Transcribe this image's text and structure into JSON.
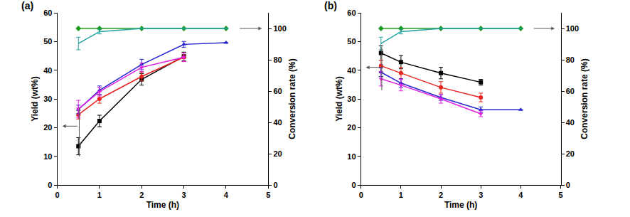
{
  "chart_data": [
    {
      "type": "line",
      "title": "(a)",
      "x_label": "Time (h)",
      "y_label": "Yield (wt%)",
      "y2_label": "Conversion rate (%)",
      "x": [
        0.5,
        1,
        2,
        3,
        4
      ],
      "xlim": [
        0,
        5
      ],
      "xticks": [
        0,
        1,
        2,
        3,
        4,
        5
      ],
      "ylim": [
        0,
        60
      ],
      "yticks": [
        0,
        10,
        20,
        30,
        40,
        50,
        60
      ],
      "y2lim": [
        0,
        110
      ],
      "y2ticks": [
        0,
        20,
        40,
        60,
        80,
        100
      ],
      "grid": false,
      "series": [
        {
          "color": "#000000",
          "marker": "square",
          "values": [
            13.5,
            22.3,
            36.8,
            44.8,
            null
          ],
          "error": [
            3,
            2,
            2,
            1.5,
            null
          ]
        },
        {
          "color": "#e8231f",
          "marker": "circle",
          "values": [
            24.5,
            30,
            37.8,
            44.5,
            null
          ],
          "error": [
            1.5,
            1.5,
            1.5,
            1.5,
            null
          ]
        },
        {
          "color": "#2424d0",
          "marker": "triangle-up",
          "values": [
            26.3,
            33,
            42,
            49,
            49.6
          ],
          "error": [
            1.5,
            1.5,
            1.8,
            1,
            null
          ]
        },
        {
          "color": "#e020e0",
          "marker": "triangle-down",
          "values": [
            26.5,
            32.5,
            41,
            44.5,
            null
          ],
          "error": [
            3,
            1.5,
            1.5,
            1.5,
            null
          ]
        },
        {
          "color": "#1e9a1e",
          "marker": "diamond",
          "axis": "y2",
          "values": [
            100,
            100,
            100,
            100,
            100
          ],
          "error": [
            null,
            null,
            null,
            null,
            null
          ]
        },
        {
          "color": "#20a0a0",
          "marker": "none",
          "axis": "y2",
          "values": [
            90.4,
            98,
            100,
            100,
            100
          ],
          "error": [
            4,
            1.5,
            null,
            null,
            null
          ]
        }
      ]
    },
    {
      "type": "line",
      "title": "(b)",
      "x_label": "Time (h)",
      "y_label": "Yield (wt%)",
      "y2_label": "Conversion rate (%)",
      "x": [
        0.5,
        1,
        2,
        3,
        4
      ],
      "xlim": [
        0,
        5
      ],
      "xticks": [
        0,
        1,
        2,
        3,
        4,
        5
      ],
      "ylim": [
        0,
        60
      ],
      "yticks": [
        0,
        10,
        20,
        30,
        40,
        50,
        60
      ],
      "y2lim": [
        0,
        110
      ],
      "y2ticks": [
        0,
        20,
        40,
        60,
        80,
        100
      ],
      "grid": false,
      "series": [
        {
          "color": "#000000",
          "marker": "square",
          "values": [
            46,
            42.8,
            39,
            35.8,
            null
          ],
          "error": [
            2.5,
            2.3,
            2,
            1,
            null
          ]
        },
        {
          "color": "#e8231f",
          "marker": "circle",
          "values": [
            41.5,
            39,
            34,
            30.5,
            null
          ],
          "error": [
            2,
            2,
            2,
            1.5,
            null
          ]
        },
        {
          "color": "#2424d0",
          "marker": "triangle-up",
          "values": [
            39.3,
            35.5,
            30.5,
            26.2,
            26.2
          ],
          "error": [
            1.5,
            1.5,
            1,
            1,
            null
          ]
        },
        {
          "color": "#e020e0",
          "marker": "triangle-down",
          "values": [
            37,
            34.8,
            30,
            24.8,
            null
          ],
          "error": [
            2.5,
            2,
            1.5,
            1,
            null
          ]
        },
        {
          "color": "#1e9a1e",
          "marker": "diamond",
          "axis": "y2",
          "values": [
            100,
            100,
            100,
            100,
            100
          ],
          "error": [
            null,
            null,
            null,
            null,
            null
          ]
        },
        {
          "color": "#20a0a0",
          "marker": "none",
          "axis": "y2",
          "values": [
            90.4,
            98,
            100,
            100,
            100
          ],
          "error": [
            4,
            1.5,
            null,
            null,
            null
          ]
        }
      ]
    }
  ]
}
